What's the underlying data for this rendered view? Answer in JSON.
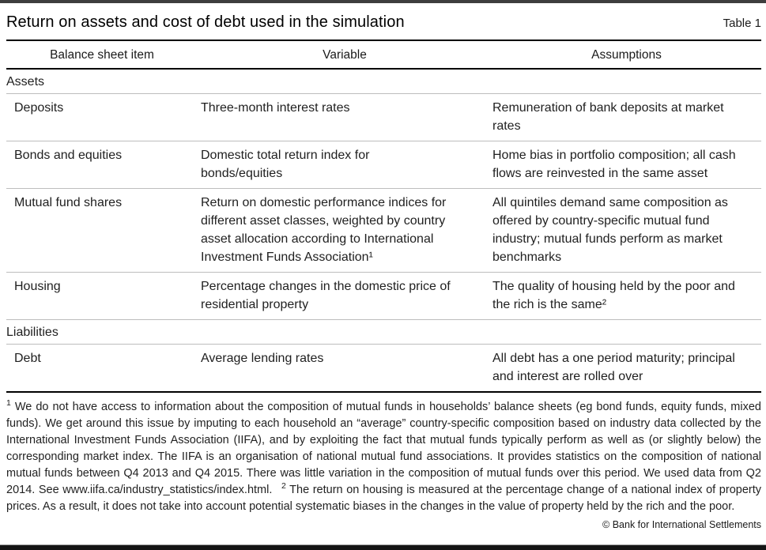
{
  "header": {
    "title": "Return on assets and cost of debt used in the simulation",
    "table_label": "Table 1"
  },
  "table": {
    "columns": [
      "Balance sheet item",
      "Variable",
      "Assumptions"
    ],
    "sections": [
      {
        "label": "Assets",
        "rows": [
          {
            "item": "Deposits",
            "variable": "Three-month interest rates",
            "assumptions": "Remuneration of bank deposits at market rates"
          },
          {
            "item": "Bonds and equities",
            "variable": "Domestic total return index for bonds/equities",
            "assumptions": "Home bias in portfolio composition; all cash flows are reinvested in the same asset"
          },
          {
            "item": "Mutual fund shares",
            "variable": "Return on domestic performance indices for different asset classes, weighted by country asset allocation according to International Investment Funds Association¹",
            "assumptions": "All quintiles demand same composition as offered by country-specific mutual fund industry; mutual funds perform as market benchmarks"
          },
          {
            "item": "Housing",
            "variable": "Percentage changes in the domestic price of residential property",
            "assumptions": "The quality of housing held by the poor and the rich is the same²"
          }
        ]
      },
      {
        "label": "Liabilities",
        "rows": [
          {
            "item": "Debt",
            "variable": "Average lending rates",
            "assumptions": "All debt has a one period maturity; principal and interest are rolled over"
          }
        ]
      }
    ]
  },
  "footnotes": [
    {
      "marker": "1",
      "text": "We do not have access to information about the composition of mutual funds in households’ balance sheets (eg bond funds, equity funds, mixed funds). We get around this issue by imputing to each household an “average” country-specific composition based on industry data collected by the International Investment Funds Association (IIFA), and by exploiting the fact that mutual funds typically perform as well as (or slightly below) the corresponding market index. The IIFA is an organisation of national mutual fund associations. It provides statistics on the composition of national mutual funds between Q4 2013 and Q4 2015. There was little variation in the composition of mutual funds over this period. We used data from Q2 2014. See www.iifa.ca/industry_statistics/index.html."
    },
    {
      "marker": "2",
      "text": "The return on housing is measured at the percentage change of a national index of property prices. As a result, it does not take into account potential systematic biases in the changes in the value of property held by the rich and the poor."
    }
  ],
  "copyright": "© Bank for International Settlements",
  "colors": {
    "rule_black": "#000000",
    "rule_gray": "#bdbdbd",
    "top_bar": "#3e3e3e",
    "bottom_bar": "#141414"
  }
}
